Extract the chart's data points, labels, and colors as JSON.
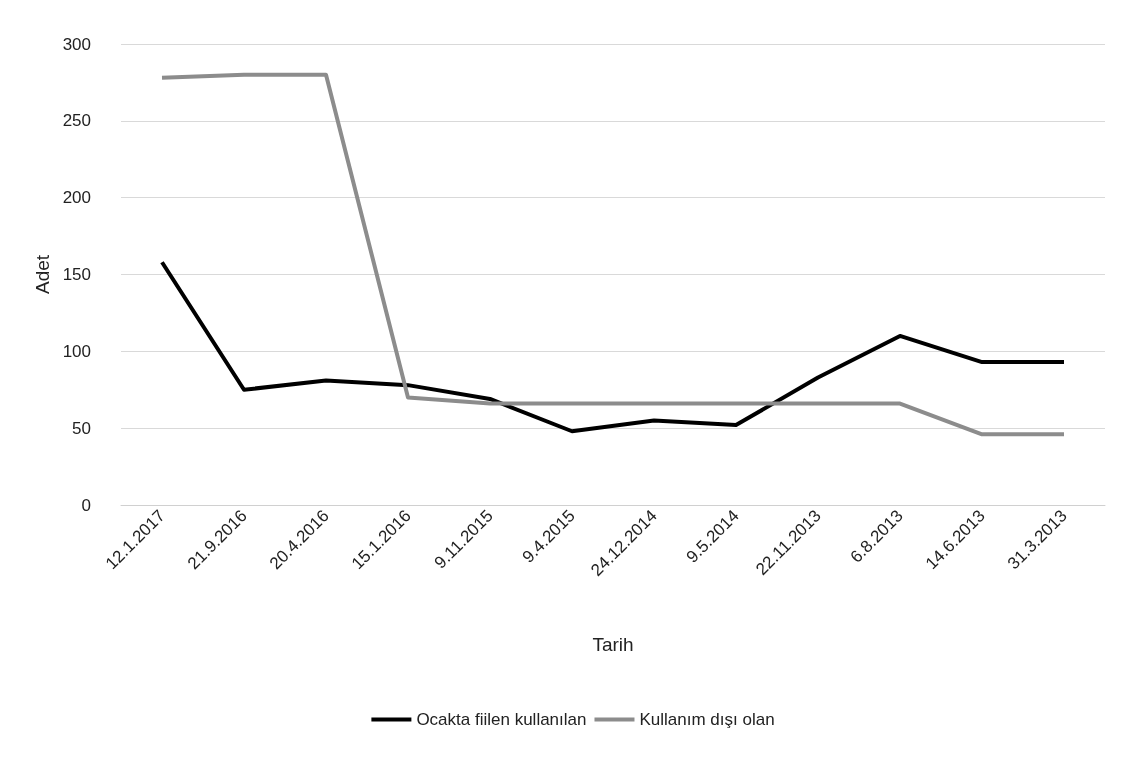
{
  "chart_data": {
    "type": "line",
    "xlabel": "Tarih",
    "ylabel": "Adet",
    "categories": [
      "12.1.2017",
      "21.9.2016",
      "20.4.2016",
      "15.1.2016",
      "9.11.2015",
      "9.4.2015",
      "24.12.2014",
      "9.5.2014",
      "22.11.2013",
      "6.8.2013",
      "14.6.2013",
      "31.3.2013"
    ],
    "series": [
      {
        "name": "Ocakta fiilen kullanılan",
        "color": "#000000",
        "values": [
          158,
          75,
          81,
          78,
          69,
          48,
          55,
          52,
          83,
          110,
          93,
          93
        ]
      },
      {
        "name": "Kullanım dışı olan",
        "color": "#8c8c8c",
        "values": [
          278,
          280,
          280,
          70,
          66,
          66,
          66,
          66,
          66,
          66,
          46,
          46
        ]
      }
    ],
    "ylim": [
      0,
      300
    ],
    "yticks": [
      0,
      50,
      100,
      150,
      200,
      250,
      300
    ],
    "grid": "y",
    "legend": "bottom",
    "marker": "none",
    "line_style": "solid"
  }
}
